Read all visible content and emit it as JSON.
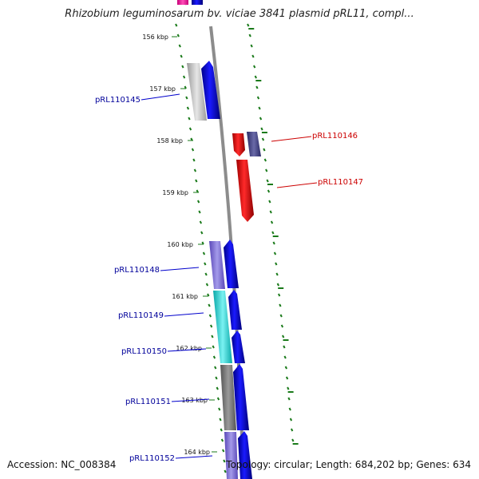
{
  "title": "Rhizobium leguminosarum bv. viciae 3841 plasmid pRL11, compl...",
  "accession": "Accession: NC_008384",
  "summary": "Topology: circular; Length: 684,202 bp; Genes: 634",
  "colors": {
    "forward_label": "#00009a",
    "reverse_label": "#cc0000",
    "backbone": "#8c8c8c",
    "ticks": "#1a7a1a"
  },
  "position_markers": [
    "156 kbp",
    "157 kbp",
    "158 kbp",
    "159 kbp",
    "160 kbp",
    "161 kbp",
    "162 kbp",
    "163 kbp",
    "164 kbp"
  ],
  "gene_labels": [
    {
      "text": "pRL110145",
      "strand": "forward"
    },
    {
      "text": "pRL110146",
      "strand": "reverse"
    },
    {
      "text": "pRL110147",
      "strand": "reverse"
    },
    {
      "text": "pRL110148",
      "strand": "forward"
    },
    {
      "text": "pRL110149",
      "strand": "forward"
    },
    {
      "text": "pRL110150",
      "strand": "forward"
    },
    {
      "text": "pRL110151",
      "strand": "forward"
    },
    {
      "text": "pRL110152",
      "strand": "forward"
    }
  ]
}
